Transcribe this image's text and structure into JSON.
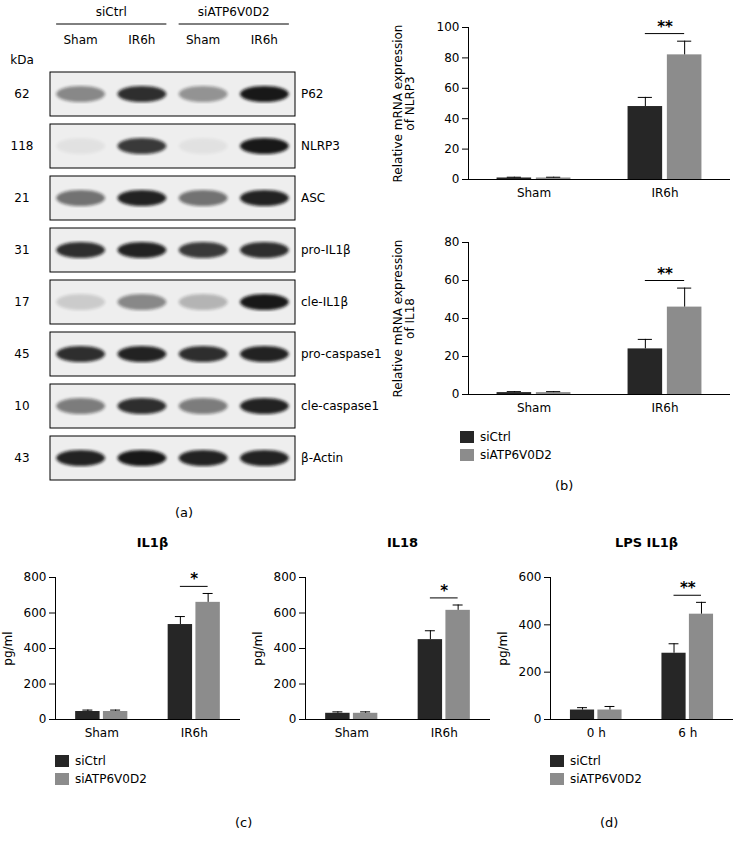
{
  "chart_data": [
    {
      "type": "western_blot",
      "panel": "(a)",
      "unit_label": "kDa",
      "groups": [
        {
          "name": "siCtrl",
          "lanes": [
            "Sham",
            "IR6h"
          ]
        },
        {
          "name": "siATP6V0D2",
          "lanes": [
            "Sham",
            "IR6h"
          ]
        }
      ],
      "rows": [
        {
          "protein": "P62",
          "kda": 62,
          "intensity": [
            0.45,
            0.85,
            0.4,
            0.95
          ]
        },
        {
          "protein": "NLRP3",
          "kda": 118,
          "intensity": [
            0.05,
            0.8,
            0.05,
            0.95
          ]
        },
        {
          "protein": "ASC",
          "kda": 21,
          "intensity": [
            0.55,
            0.9,
            0.55,
            0.9
          ]
        },
        {
          "protein": "pro-IL1β",
          "kda": 31,
          "intensity": [
            0.85,
            0.9,
            0.8,
            0.85
          ]
        },
        {
          "protein": "cle-IL1β",
          "kda": 17,
          "intensity": [
            0.15,
            0.45,
            0.25,
            0.95
          ]
        },
        {
          "protein": "pro-caspase1",
          "kda": 45,
          "intensity": [
            0.85,
            0.9,
            0.85,
            0.9
          ]
        },
        {
          "protein": "cle-caspase1",
          "kda": 10,
          "intensity": [
            0.5,
            0.85,
            0.5,
            0.9
          ]
        },
        {
          "protein": "β-Actin",
          "kda": 43,
          "intensity": [
            0.9,
            0.95,
            0.9,
            0.9
          ]
        }
      ]
    },
    {
      "type": "bar",
      "ylabel": "Relative mRNA expression\nof NLRP3",
      "categories": [
        "Sham",
        "IR6h"
      ],
      "series": [
        {
          "name": "siCtrl",
          "color": "#262626",
          "values": [
            1,
            48
          ],
          "errors": [
            0.5,
            6
          ]
        },
        {
          "name": "siATP6V0D2",
          "color": "#8c8c8c",
          "values": [
            1,
            82
          ],
          "errors": [
            0.5,
            9
          ]
        }
      ],
      "ylim": [
        0,
        100
      ],
      "yticks": [
        0,
        20,
        40,
        60,
        80,
        100
      ],
      "annotations": [
        {
          "category": "IR6h",
          "text": "**"
        }
      ]
    },
    {
      "type": "bar",
      "panel": "(b)",
      "ylabel": "Relative mRNA expression\nof IL18",
      "categories": [
        "Sham",
        "IR6h"
      ],
      "series": [
        {
          "name": "siCtrl",
          "color": "#262626",
          "values": [
            1,
            24
          ],
          "errors": [
            0.5,
            5
          ]
        },
        {
          "name": "siATP6V0D2",
          "color": "#8c8c8c",
          "values": [
            1,
            46
          ],
          "errors": [
            0.5,
            10
          ]
        }
      ],
      "ylim": [
        0,
        80
      ],
      "yticks": [
        0,
        20,
        40,
        60,
        80
      ],
      "annotations": [
        {
          "category": "IR6h",
          "text": "**"
        }
      ],
      "legend": "bottom"
    },
    {
      "type": "bar",
      "title": "IL1β",
      "panel": "(c)",
      "ylabel": "pg/ml",
      "categories": [
        "Sham",
        "IR6h"
      ],
      "series": [
        {
          "name": "siCtrl",
          "color": "#262626",
          "values": [
            45,
            535
          ],
          "errors": [
            8,
            45
          ]
        },
        {
          "name": "siATP6V0D2",
          "color": "#8c8c8c",
          "values": [
            45,
            660
          ],
          "errors": [
            8,
            50
          ]
        }
      ],
      "ylim": [
        0,
        800
      ],
      "yticks": [
        0,
        200,
        400,
        600,
        800
      ],
      "annotations": [
        {
          "category": "IR6h",
          "text": "*"
        }
      ],
      "legend": "bottom"
    },
    {
      "type": "bar",
      "title": "IL18",
      "ylabel": "pg/ml",
      "categories": [
        "Sham",
        "IR6h"
      ],
      "series": [
        {
          "name": "siCtrl",
          "color": "#262626",
          "values": [
            35,
            450
          ],
          "errors": [
            8,
            50
          ]
        },
        {
          "name": "siATP6V0D2",
          "color": "#8c8c8c",
          "values": [
            35,
            615
          ],
          "errors": [
            8,
            30
          ]
        }
      ],
      "ylim": [
        0,
        800
      ],
      "yticks": [
        0,
        200,
        400,
        600,
        800
      ],
      "annotations": [
        {
          "category": "IR6h",
          "text": "*"
        }
      ]
    },
    {
      "type": "bar",
      "title": "LPS IL1β",
      "panel": "(d)",
      "ylabel": "pg/ml",
      "categories": [
        "0 h",
        "6 h"
      ],
      "series": [
        {
          "name": "siCtrl",
          "color": "#262626",
          "values": [
            40,
            280
          ],
          "errors": [
            10,
            40
          ]
        },
        {
          "name": "siATP6V0D2",
          "color": "#8c8c8c",
          "values": [
            40,
            445
          ],
          "errors": [
            15,
            50
          ]
        }
      ],
      "ylim": [
        0,
        600
      ],
      "yticks": [
        0,
        200,
        400,
        600
      ],
      "annotations": [
        {
          "category": "6 h",
          "text": "**"
        }
      ],
      "legend": "bottom"
    }
  ]
}
